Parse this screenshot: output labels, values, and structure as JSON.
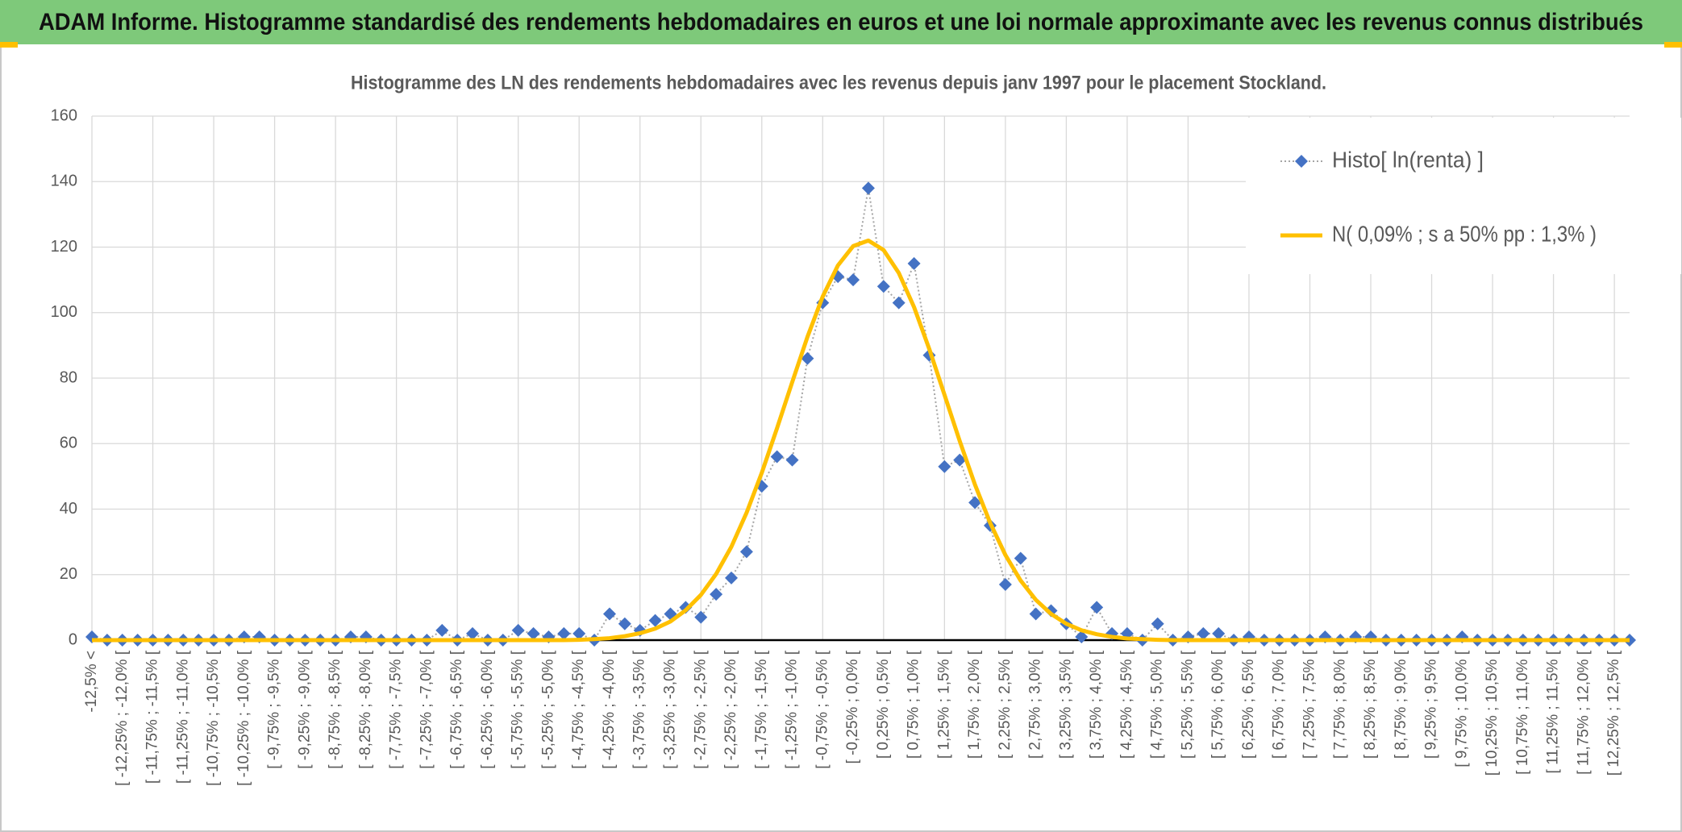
{
  "header": {
    "title": "ADAM Informe. Histogramme standardisé des rendements hebdomadaires en euros et une loi normale approximante avec les revenus connus distribués"
  },
  "chart_data": {
    "type": "line",
    "title": "Histogramme des LN des rendements hebdomadaires avec les revenus depuis janv 1997 pour le placement Stockland.",
    "categories": [
      "-12,5% <",
      null,
      "[ -12,25% ; -12,0% [",
      null,
      "[ -11,75% ; -11,5% [",
      null,
      "[ -11,25% ; -11,0% [",
      null,
      "[ -10,75% ; -10,5% [",
      null,
      "[ -10,25% ; -10,0% [",
      null,
      "[ -9,75% ; -9,5% [",
      null,
      "[ -9,25% ; -9,0% [",
      null,
      "[ -8,75% ; -8,5% [",
      null,
      "[ -8,25% ; -8,0% [",
      null,
      "[ -7,75% ; -7,5% [",
      null,
      "[ -7,25% ; -7,0% [",
      null,
      "[ -6,75% ; -6,5% [",
      null,
      "[ -6,25% ; -6,0% [",
      null,
      "[ -5,75% ; -5,5% [",
      null,
      "[ -5,25% ; -5,0% [",
      null,
      "[ -4,75% ; -4,5% [",
      null,
      "[ -4,25% ; -4,0% [",
      null,
      "[ -3,75% ; -3,5% [",
      null,
      "[ -3,25% ; -3,0% [",
      null,
      "[ -2,75% ; -2,5% [",
      null,
      "[ -2,25% ; -2,0% [",
      null,
      "[ -1,75% ; -1,5% [",
      null,
      "[ -1,25% ; -1,0% [",
      null,
      "[ -0,75% ; -0,5% [",
      null,
      "[ -0,25% ; 0,0% [",
      null,
      "[ 0,25% ; 0,5% [",
      null,
      "[ 0,75% ; 1,0% [",
      null,
      "[ 1,25% ; 1,5% [",
      null,
      "[ 1,75% ; 2,0% [",
      null,
      "[ 2,25% ; 2,5% [",
      null,
      "[ 2,75% ; 3,0% [",
      null,
      "[ 3,25% ; 3,5% [",
      null,
      "[ 3,75% ; 4,0% [",
      null,
      "[ 4,25% ; 4,5% [",
      null,
      "[ 4,75% ; 5,0% [",
      null,
      "[ 5,25% ; 5,5% [",
      null,
      "[ 5,75% ; 6,0% [",
      null,
      "[ 6,25% ; 6,5% [",
      null,
      "[ 6,75% ; 7,0% [",
      null,
      "[ 7,25% ; 7,5% [",
      null,
      "[ 7,75% ; 8,0% [",
      null,
      "[ 8,25% ; 8,5% [",
      null,
      "[ 8,75% ; 9,0% [",
      null,
      "[ 9,25% ; 9,5% [",
      null,
      "[ 9,75% ; 10,0% [",
      null,
      "[ 10,25% ; 10,5% [",
      null,
      "[ 10,75% ; 11,0% [",
      null,
      "[ 11,25% ; 11,5% [",
      null,
      "[ 11,75% ; 12,0% [",
      null,
      "[ 12,25% ; 12,5% [",
      null
    ],
    "series": [
      {
        "name": "Histo[ ln(renta) ]",
        "color": "#4472c4",
        "line_color": "#a5a5a5",
        "marker": "diamond",
        "values": [
          1,
          0,
          0,
          0,
          0,
          0,
          0,
          0,
          0,
          0,
          1,
          1,
          0,
          0,
          0,
          0,
          0,
          1,
          1,
          0,
          0,
          0,
          0,
          3,
          0,
          2,
          0,
          0,
          3,
          2,
          1,
          2,
          2,
          0,
          8,
          5,
          3,
          6,
          8,
          10,
          7,
          14,
          19,
          27,
          47,
          56,
          55,
          86,
          103,
          111,
          110,
          138,
          108,
          103,
          115,
          87,
          53,
          55,
          42,
          35,
          17,
          25,
          8,
          9,
          5,
          1,
          10,
          2,
          2,
          0,
          5,
          0,
          1,
          2,
          2,
          0,
          1,
          0,
          0,
          0,
          0,
          1,
          0,
          1,
          1,
          0,
          0,
          0,
          0,
          0,
          1,
          0,
          0,
          0,
          0,
          0,
          0,
          0,
          0,
          0,
          0,
          0
        ]
      },
      {
        "name": "N( 0,09% ; s a 50% pp : 1,3% )",
        "color": "#ffc000",
        "values": [
          0,
          0,
          0,
          0,
          0,
          0,
          0,
          0,
          0,
          0,
          0,
          0,
          0,
          0,
          0,
          0,
          0,
          0,
          0,
          0,
          0,
          0,
          0,
          0,
          0,
          0,
          0,
          0,
          0,
          0,
          0,
          0,
          0.1,
          0.3,
          0.6,
          1.2,
          2.1,
          3.5,
          5.7,
          9.1,
          13.8,
          20.2,
          28.5,
          38.9,
          51.1,
          64.7,
          78.8,
          92.6,
          104.9,
          114.4,
          120.3,
          122.0,
          119.1,
          112.1,
          101.7,
          88.9,
          74.9,
          60.8,
          47.5,
          35.8,
          26.0,
          18.2,
          12.3,
          8.0,
          5.0,
          3.0,
          1.8,
          1.0,
          0.5,
          0.3,
          0.1,
          0,
          0,
          0,
          0,
          0,
          0,
          0,
          0,
          0,
          0,
          0,
          0,
          0,
          0,
          0,
          0,
          0,
          0,
          0,
          0,
          0,
          0,
          0,
          0,
          0,
          0,
          0,
          0,
          0,
          0,
          0
        ]
      }
    ],
    "ylim": [
      0,
      160
    ],
    "yticks": [
      0,
      20,
      40,
      60,
      80,
      100,
      120,
      140,
      160
    ],
    "grid": true,
    "legend": "upper right"
  }
}
